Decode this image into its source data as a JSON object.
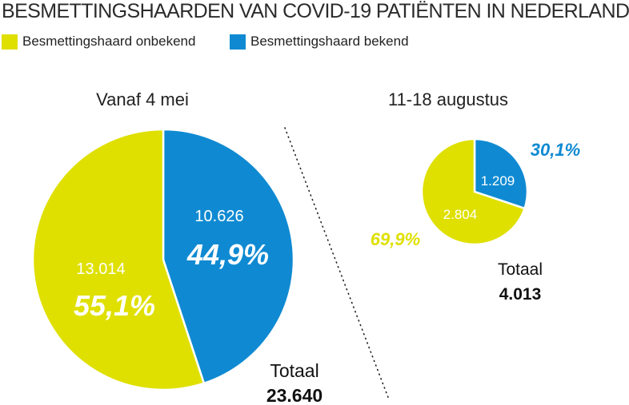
{
  "title": "BESMETTINGSHAARDEN VAN COVID-19 PATIËNTEN IN NEDERLAND",
  "legend": [
    {
      "label": "Besmettingshaard onbekend",
      "color": "#dfe000"
    },
    {
      "label": "Besmettingshaard bekend",
      "color": "#0f8ad2"
    }
  ],
  "chart_data": [
    {
      "type": "pie",
      "title": "Vanaf 4 mei",
      "slices": [
        {
          "name": "Besmettingshaard onbekend",
          "value": 13014,
          "value_label": "13.014",
          "pct_label": "55,1%",
          "color": "#dfe000"
        },
        {
          "name": "Besmettingshaard bekend",
          "value": 10626,
          "value_label": "10.626",
          "pct_label": "44,9%",
          "color": "#0f8ad2"
        }
      ],
      "total_label": "Totaal",
      "total_value": "23.640"
    },
    {
      "type": "pie",
      "title": "11-18 augustus",
      "slices": [
        {
          "name": "Besmettingshaard onbekend",
          "value": 2804,
          "value_label": "2.804",
          "pct_label": "69,9%",
          "color": "#dfe000"
        },
        {
          "name": "Besmettingshaard bekend",
          "value": 1209,
          "value_label": "1.209",
          "pct_label": "30,1%",
          "color": "#0f8ad2"
        }
      ],
      "total_label": "Totaal",
      "total_value": "4.013"
    }
  ]
}
